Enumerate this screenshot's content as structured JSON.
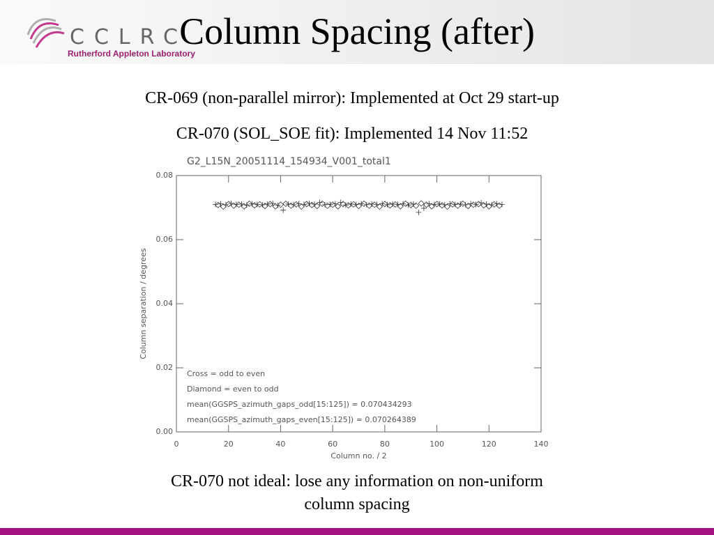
{
  "slide": {
    "title": "Column Spacing (after)",
    "logo": {
      "letters": "CCLRC",
      "subtitle": "Rutherford Appleton Laboratory"
    },
    "lines": [
      "CR-069 (non-parallel mirror): Implemented at Oct 29 start-up",
      "CR-070 (SOL_SOE fit): Implemented 14 Nov 11:52"
    ],
    "conclusion": [
      "CR-070 not ideal: lose any information on non-uniform",
      "column spacing"
    ]
  },
  "chart_data": {
    "type": "scatter",
    "title": "G2_L15N_20051114_154934_V001_total1",
    "x_label": "Column no. / 2",
    "y_label": "Column separation / degrees",
    "annotations": [
      "Cross = odd to even",
      "Diamond = even to odd",
      "mean(GGSPS_azimuth_gaps_odd[15:125]) = 0.070434293",
      "mean(GGSPS_azimuth_gaps_even[15:125]) = 0.070264389"
    ],
    "xlim": [
      0,
      140
    ],
    "xticks": [
      0,
      20,
      40,
      60,
      80,
      100,
      120,
      140
    ],
    "ylim": [
      0,
      0.08
    ],
    "yticks": [
      {
        "value": 0,
        "label": "0.00"
      },
      0.02,
      0.04,
      0.06,
      0.08
    ],
    "color": "#333333",
    "series": [
      {
        "marker": "cross",
        "x": [
          15,
          17,
          19,
          21,
          23,
          25,
          27,
          29,
          31,
          33,
          35,
          37,
          39,
          41,
          43,
          45,
          47,
          49,
          51,
          53,
          55,
          57,
          59,
          61,
          63,
          65,
          67,
          69,
          71,
          73,
          75,
          77,
          79,
          81,
          83,
          85,
          87,
          89,
          91,
          93,
          95,
          97,
          99,
          101,
          103,
          105,
          107,
          109,
          111,
          113,
          115,
          117,
          119,
          121,
          123,
          125
        ],
        "values": [
          0.071,
          0.0712,
          0.0709,
          0.0713,
          0.071,
          0.0711,
          0.0708,
          0.0712,
          0.071,
          0.0709,
          0.0711,
          0.0713,
          0.0707,
          0.0692,
          0.0711,
          0.0709,
          0.0712,
          0.071,
          0.0713,
          0.0711,
          0.0716,
          0.0709,
          0.071,
          0.0712,
          0.0716,
          0.0708,
          0.0711,
          0.071,
          0.0712,
          0.0709,
          0.0711,
          0.071,
          0.0712,
          0.0709,
          0.0711,
          0.071,
          0.0712,
          0.0708,
          0.0711,
          0.0685,
          0.0698,
          0.0712,
          0.071,
          0.0711,
          0.0709,
          0.0712,
          0.071,
          0.0711,
          0.0709,
          0.0712,
          0.071,
          0.0715,
          0.0711,
          0.0709,
          0.0712,
          0.071
        ]
      },
      {
        "marker": "diamond",
        "x": [
          16,
          18,
          20,
          22,
          24,
          26,
          28,
          30,
          32,
          34,
          36,
          38,
          40,
          42,
          44,
          46,
          48,
          50,
          52,
          54,
          56,
          58,
          60,
          62,
          64,
          66,
          68,
          70,
          72,
          74,
          76,
          78,
          80,
          82,
          84,
          86,
          88,
          90,
          92,
          94,
          96,
          98,
          100,
          102,
          104,
          106,
          108,
          110,
          112,
          114,
          116,
          118,
          120,
          122,
          124
        ],
        "values": [
          0.0708,
          0.0703,
          0.0711,
          0.0706,
          0.0709,
          0.0704,
          0.0712,
          0.0707,
          0.071,
          0.0705,
          0.0711,
          0.0704,
          0.0709,
          0.0712,
          0.0706,
          0.071,
          0.0703,
          0.0711,
          0.0708,
          0.0705,
          0.0712,
          0.0706,
          0.0709,
          0.0704,
          0.0711,
          0.0707,
          0.071,
          0.0705,
          0.0712,
          0.0706,
          0.0709,
          0.0703,
          0.0711,
          0.0707,
          0.071,
          0.0704,
          0.0712,
          0.0708,
          0.0706,
          0.0713,
          0.0709,
          0.0704,
          0.0711,
          0.0707,
          0.0703,
          0.071,
          0.0706,
          0.0712,
          0.0705,
          0.0709,
          0.0711,
          0.0707,
          0.0704,
          0.071,
          0.0706
        ]
      }
    ]
  }
}
